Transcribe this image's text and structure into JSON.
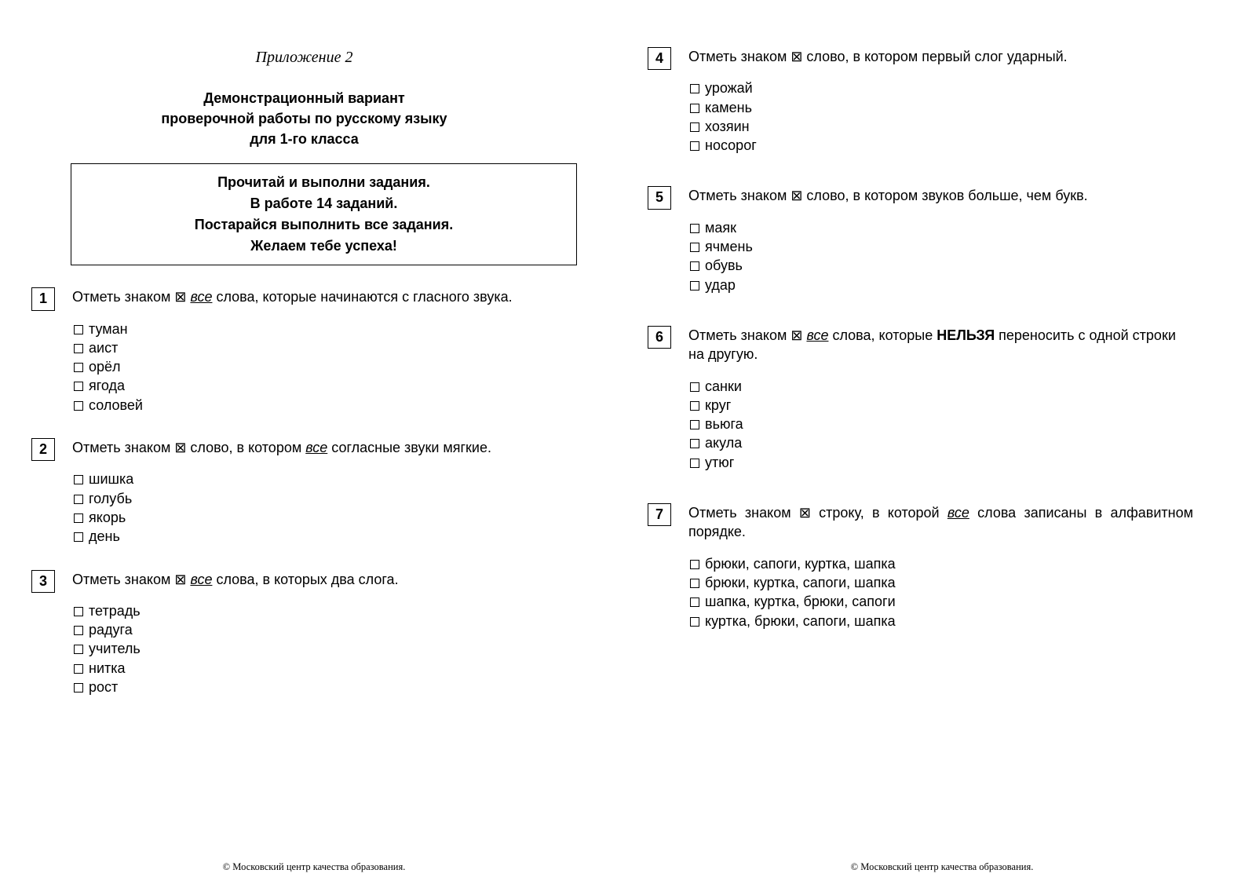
{
  "appendix_label": "Приложение 2",
  "heading_l1": "Демонстрационный вариант",
  "heading_l2": "проверочной работы по русскому языку",
  "heading_l3": "для 1-го класса",
  "intro_l1": "Прочитай и выполни задания.",
  "intro_l2": "В работе 14 заданий.",
  "intro_l3": "Постарайся выполнить все задания.",
  "intro_l4": "Желаем тебе успеха!",
  "t1": {
    "num": "1",
    "pre": "Отметь знаком ⊠ ",
    "u": "все",
    "post": " слова, которые начинаются с гласного звука.",
    "opts": [
      "туман",
      "аист",
      "орёл",
      "ягода",
      "соловей"
    ]
  },
  "t2": {
    "num": "2",
    "pre": "Отметь знаком ⊠ слово, в котором ",
    "u": "все",
    "post": " согласные звуки мягкие.",
    "opts": [
      "шишка",
      "голубь",
      "якорь",
      "день"
    ]
  },
  "t3": {
    "num": "3",
    "pre": "Отметь знаком ⊠ ",
    "u": "все",
    "post": " слова, в которых два слога.",
    "opts": [
      "тетрадь",
      "радуга",
      "учитель",
      "нитка",
      "рост"
    ]
  },
  "t4": {
    "num": "4",
    "text": "Отметь знаком ⊠ слово, в котором первый слог ударный.",
    "opts": [
      "урожай",
      "камень",
      "хозяин",
      "носорог"
    ]
  },
  "t5": {
    "num": "5",
    "text": "Отметь знаком ⊠ слово, в котором звуков больше, чем букв.",
    "opts": [
      "маяк",
      "ячмень",
      "обувь",
      "удар"
    ]
  },
  "t6": {
    "num": "6",
    "pre": "Отметь знаком ⊠ ",
    "u": "все",
    "mid": " слова, которые ",
    "bold": "НЕЛЬЗЯ",
    "post": " переносить с одной строки на другую.",
    "opts": [
      "санки",
      "круг",
      "вьюга",
      "акула",
      "утюг"
    ]
  },
  "t7": {
    "num": "7",
    "pre": "Отметь знаком ⊠ строку, в которой ",
    "u": "все",
    "post": " слова записаны в алфавитном порядке.",
    "opts": [
      "брюки, сапоги, куртка, шапка",
      "брюки, куртка, сапоги, шапка",
      "шапка, куртка, брюки, сапоги",
      "куртка, брюки, сапоги, шапка"
    ]
  },
  "footer_text": "© Московский центр качества образования."
}
